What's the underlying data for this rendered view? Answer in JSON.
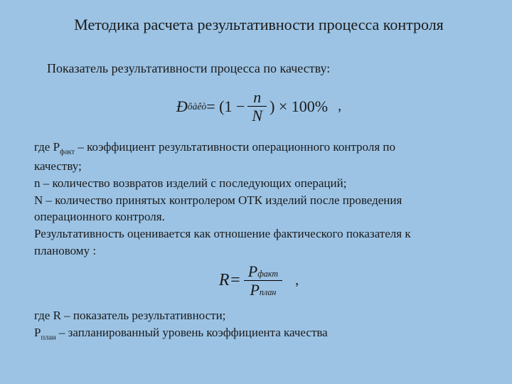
{
  "title": "Методика расчета результативности процесса контроля",
  "subtitle": "Показатель результативности процесса по качеству:",
  "formula1": {
    "lhs_base": "Đ",
    "lhs_sub": "ôàêò",
    "eq": " = (1 − ",
    "frac_num": "n",
    "frac_den": "N",
    "close": ") × 100%",
    "comma": ","
  },
  "body": {
    "p1a": "где Р",
    "p1a_sub": "факт",
    "p1b": " – коэффициент результативности операционного контроля по",
    "p2": "качеству;",
    "p3": "n – количество возвратов изделий с последующих операций;",
    "p4": "N – количество принятых контролером ОТК изделий после проведения",
    "p5": "операционного контроля.",
    "p6": "Результативность оценивается как отношение фактического показателя к",
    "p7": "плановому :"
  },
  "formula2": {
    "lhs": "R",
    "eq": " = ",
    "num_base": "P",
    "num_sub": "факт",
    "den_base": "P",
    "den_sub": "план",
    "comma": ","
  },
  "body2": {
    "q1": "где R – показатель результативности;",
    "q2a": "Р",
    "q2a_sub": "план",
    "q2b": " – запланированный уровень коэффициента качества"
  }
}
